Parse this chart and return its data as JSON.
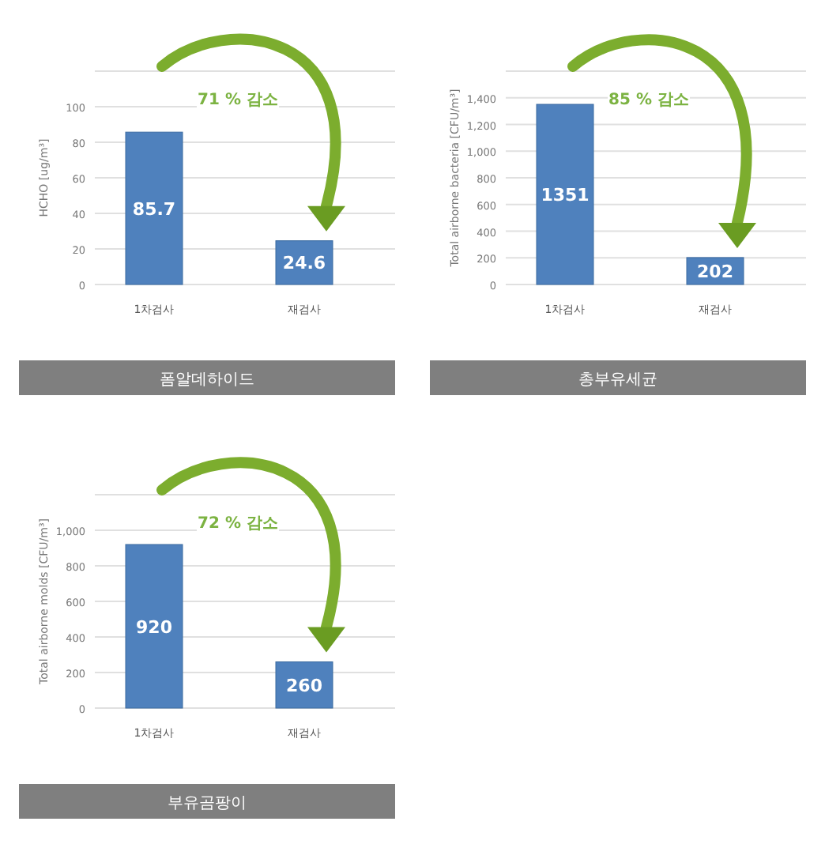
{
  "chart_data": [
    {
      "type": "bar",
      "title": "폼알데하이드",
      "ylabel": "HCHO [ug/m³]",
      "categories": [
        "1차검사",
        "재검사"
      ],
      "values": [
        85.7,
        24.6
      ],
      "color": "#4f81bd",
      "ylim": [
        0,
        120
      ],
      "yticks": [
        0,
        20,
        40,
        60,
        80,
        100,
        {
          "value": 120,
          "label": null
        }
      ],
      "grid": "y",
      "data_labels": true,
      "annotations": [
        "71 % 감소"
      ]
    },
    {
      "type": "bar",
      "title": "총부유세균",
      "ylabel": "Total airborne bacteria [CFU/m³]",
      "categories": [
        "1차검사",
        "재검사"
      ],
      "values": [
        1351,
        202
      ],
      "color": "#4f81bd",
      "ylim": [
        0,
        1600
      ],
      "yticks": [
        0,
        {
          "value": 200,
          "label": "200"
        },
        {
          "value": 400,
          "label": "400"
        },
        {
          "value": 600,
          "label": "600"
        },
        {
          "value": 800,
          "label": "800"
        },
        {
          "value": 1000,
          "label": "1,000"
        },
        {
          "value": 1200,
          "label": "1,200"
        },
        {
          "value": 1400,
          "label": "1,400"
        },
        {
          "value": 1600,
          "label": null
        }
      ],
      "grid": "y",
      "data_labels": true,
      "annotations": [
        "85 % 감소"
      ]
    },
    {
      "type": "bar",
      "title": "부유곰팡이",
      "ylabel": "Total airborne molds [CFU/m³]",
      "categories": [
        "1차검사",
        "재검사"
      ],
      "values": [
        920,
        260
      ],
      "color": "#4f81bd",
      "ylim": [
        0,
        1200
      ],
      "yticks": [
        0,
        200,
        400,
        600,
        800,
        {
          "value": 1000,
          "label": "1,000"
        },
        {
          "value": 1200,
          "label": null
        }
      ],
      "grid": "y",
      "data_labels": true,
      "annotations": [
        "72 % 감소"
      ]
    }
  ]
}
